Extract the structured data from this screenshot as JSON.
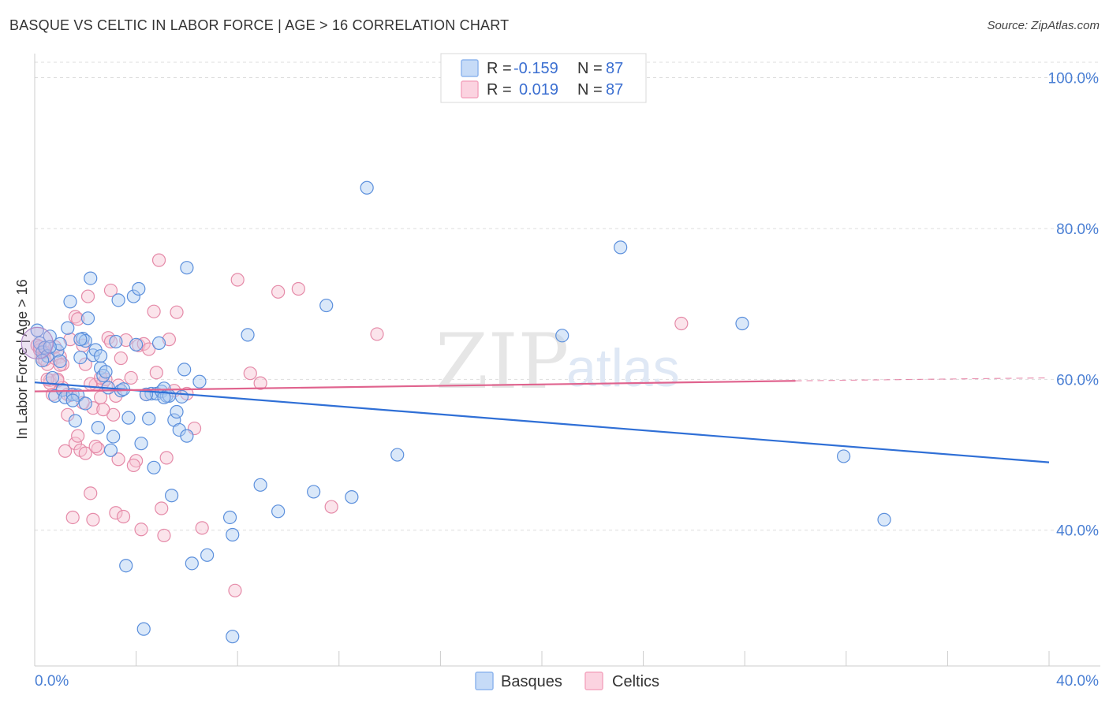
{
  "title": "BASQUE VS CELTIC IN LABOR FORCE | AGE > 16 CORRELATION CHART",
  "source": "Source: ZipAtlas.com",
  "watermark": {
    "zip": "ZIP",
    "atlas": "atlas"
  },
  "legend_top": [
    {
      "r_label": "R = ",
      "r_value": "-0.159",
      "n_label": "N = ",
      "n_value": "87",
      "color": "#8fb6ee"
    },
    {
      "r_label": "R = ",
      "r_value": "0.019",
      "n_label": "N = ",
      "n_value": "87",
      "color": "#f4a7c0"
    }
  ],
  "legend_bottom": [
    "Basques",
    "Celtics"
  ],
  "colors": {
    "blue_fill": "#aecbf2",
    "blue_stroke": "#5b8fdc",
    "blue_line": "#2f6fd6",
    "pink_fill": "#f7c3d3",
    "pink_stroke": "#e58aa8",
    "pink_line": "#e0638e",
    "grid": "#dddddd",
    "tick_text": "#4a7fd4"
  },
  "chart_data": {
    "type": "scatter",
    "title": "BASQUE VS CELTIC IN LABOR FORCE | AGE > 16 CORRELATION CHART",
    "xlabel": "",
    "ylabel": "In Labor Force | Age > 16",
    "xlim": [
      0,
      40
    ],
    "ylim": [
      22,
      102
    ],
    "x_tick_labels": [
      {
        "value": 0,
        "label": "0.0%"
      },
      {
        "value": 40,
        "label": "40.0%"
      }
    ],
    "x_minor_ticks": [
      0,
      4,
      8,
      12,
      16,
      20,
      24,
      28,
      32,
      36,
      40
    ],
    "y_ticks": [
      {
        "value": 40,
        "label": "40.0%"
      },
      {
        "value": 60,
        "label": "60.0%"
      },
      {
        "value": 80,
        "label": "80.0%"
      },
      {
        "value": 100,
        "label": "100.0%"
      }
    ],
    "series": [
      {
        "name": "Basques",
        "r": -0.159,
        "n": 87,
        "trend": {
          "x": [
            0,
            40
          ],
          "y": [
            59.6,
            49.0
          ]
        },
        "points": [
          [
            0.1,
            66.5
          ],
          [
            0.2,
            64.8
          ],
          [
            0.3,
            63.6
          ],
          [
            0.4,
            64.2
          ],
          [
            0.5,
            63.1
          ],
          [
            0.6,
            65.7
          ],
          [
            0.7,
            60.2
          ],
          [
            0.8,
            57.8
          ],
          [
            0.9,
            63.8
          ],
          [
            1.0,
            62.4
          ],
          [
            1.1,
            58.6
          ],
          [
            1.2,
            57.6
          ],
          [
            1.3,
            66.8
          ],
          [
            1.4,
            70.3
          ],
          [
            1.5,
            58.0
          ],
          [
            1.6,
            54.5
          ],
          [
            1.7,
            57.9
          ],
          [
            1.8,
            62.9
          ],
          [
            1.9,
            65.4
          ],
          [
            2.0,
            65.1
          ],
          [
            2.1,
            68.1
          ],
          [
            2.2,
            73.4
          ],
          [
            2.3,
            63.2
          ],
          [
            2.4,
            63.9
          ],
          [
            2.5,
            53.6
          ],
          [
            2.6,
            61.5
          ],
          [
            2.7,
            60.5
          ],
          [
            2.8,
            61.0
          ],
          [
            2.9,
            58.9
          ],
          [
            3.0,
            50.6
          ],
          [
            3.1,
            52.4
          ],
          [
            3.2,
            65.0
          ],
          [
            3.3,
            70.5
          ],
          [
            3.4,
            58.5
          ],
          [
            3.6,
            35.3
          ],
          [
            3.7,
            54.9
          ],
          [
            3.9,
            71.0
          ],
          [
            4.0,
            64.6
          ],
          [
            4.1,
            72.0
          ],
          [
            4.2,
            51.5
          ],
          [
            4.3,
            26.9
          ],
          [
            4.5,
            54.8
          ],
          [
            4.6,
            58.1
          ],
          [
            4.7,
            48.3
          ],
          [
            4.8,
            58.1
          ],
          [
            4.9,
            64.8
          ],
          [
            5.0,
            58.4
          ],
          [
            5.1,
            58.8
          ],
          [
            5.2,
            57.8
          ],
          [
            5.3,
            57.8
          ],
          [
            5.4,
            44.6
          ],
          [
            5.5,
            54.6
          ],
          [
            5.6,
            55.7
          ],
          [
            5.7,
            53.3
          ],
          [
            5.8,
            57.7
          ],
          [
            5.9,
            61.3
          ],
          [
            6.0,
            52.5
          ],
          [
            6.0,
            74.8
          ],
          [
            6.2,
            35.6
          ],
          [
            6.5,
            59.7
          ],
          [
            6.8,
            36.7
          ],
          [
            7.7,
            41.7
          ],
          [
            7.8,
            39.4
          ],
          [
            7.8,
            25.9
          ],
          [
            8.4,
            65.9
          ],
          [
            8.9,
            46.0
          ],
          [
            9.6,
            42.5
          ],
          [
            11.0,
            45.1
          ],
          [
            11.5,
            69.8
          ],
          [
            12.5,
            44.4
          ],
          [
            13.1,
            85.4
          ],
          [
            14.3,
            50.0
          ],
          [
            20.8,
            65.8
          ],
          [
            23.1,
            77.5
          ],
          [
            27.9,
            67.4
          ],
          [
            31.9,
            49.8
          ],
          [
            33.5,
            41.4
          ],
          [
            0.3,
            62.5
          ],
          [
            1.0,
            64.7
          ],
          [
            1.5,
            57.2
          ],
          [
            2.0,
            56.8
          ],
          [
            2.6,
            63.1
          ],
          [
            3.5,
            58.7
          ],
          [
            4.4,
            58.0
          ],
          [
            5.1,
            57.6
          ],
          [
            0.6,
            64.3
          ],
          [
            1.8,
            65.3
          ]
        ]
      },
      {
        "name": "Celtics",
        "r": 0.019,
        "n": 87,
        "trend": {
          "x": [
            0,
            30
          ],
          "y": [
            58.4,
            59.8
          ]
        },
        "trend_dashed": {
          "x": [
            30,
            40
          ],
          "y": [
            59.8,
            60.2
          ]
        },
        "points": [
          [
            0.1,
            64.5
          ],
          [
            0.2,
            63.9
          ],
          [
            0.3,
            62.8
          ],
          [
            0.4,
            63.6
          ],
          [
            0.5,
            62.0
          ],
          [
            0.6,
            59.9
          ],
          [
            0.7,
            58.0
          ],
          [
            0.8,
            62.8
          ],
          [
            0.9,
            59.8
          ],
          [
            1.0,
            63.0
          ],
          [
            1.1,
            62.0
          ],
          [
            1.2,
            50.5
          ],
          [
            1.3,
            55.3
          ],
          [
            1.4,
            57.9
          ],
          [
            1.5,
            41.7
          ],
          [
            1.6,
            51.5
          ],
          [
            1.7,
            52.5
          ],
          [
            1.8,
            50.6
          ],
          [
            1.9,
            64.5
          ],
          [
            2.0,
            62.0
          ],
          [
            2.1,
            71.0
          ],
          [
            2.2,
            44.9
          ],
          [
            2.3,
            56.2
          ],
          [
            2.4,
            59.3
          ],
          [
            2.5,
            50.8
          ],
          [
            2.6,
            57.6
          ],
          [
            2.7,
            59.6
          ],
          [
            2.8,
            60.0
          ],
          [
            2.9,
            65.5
          ],
          [
            3.0,
            71.8
          ],
          [
            3.1,
            55.3
          ],
          [
            3.2,
            42.3
          ],
          [
            3.3,
            59.2
          ],
          [
            3.4,
            62.8
          ],
          [
            3.5,
            41.8
          ],
          [
            3.6,
            65.2
          ],
          [
            3.8,
            60.2
          ],
          [
            4.0,
            49.2
          ],
          [
            4.1,
            64.5
          ],
          [
            4.2,
            40.1
          ],
          [
            4.3,
            64.7
          ],
          [
            4.5,
            64.0
          ],
          [
            4.7,
            69.0
          ],
          [
            4.8,
            60.9
          ],
          [
            4.9,
            75.8
          ],
          [
            5.0,
            42.9
          ],
          [
            5.1,
            39.3
          ],
          [
            5.2,
            49.6
          ],
          [
            5.3,
            65.3
          ],
          [
            5.5,
            58.5
          ],
          [
            5.6,
            68.9
          ],
          [
            6.0,
            58.1
          ],
          [
            6.3,
            53.5
          ],
          [
            6.6,
            40.3
          ],
          [
            7.9,
            32.0
          ],
          [
            8.0,
            73.2
          ],
          [
            8.5,
            60.8
          ],
          [
            8.9,
            59.5
          ],
          [
            9.6,
            71.6
          ],
          [
            10.4,
            72.0
          ],
          [
            11.7,
            43.1
          ],
          [
            13.5,
            66.0
          ],
          [
            25.5,
            67.4
          ],
          [
            0.2,
            64.3
          ],
          [
            0.4,
            62.6
          ],
          [
            0.6,
            59.5
          ],
          [
            0.8,
            64.3
          ],
          [
            1.0,
            61.9
          ],
          [
            1.4,
            65.3
          ],
          [
            1.6,
            68.3
          ],
          [
            2.0,
            50.2
          ],
          [
            2.2,
            59.4
          ],
          [
            2.4,
            51.1
          ],
          [
            2.6,
            60.2
          ],
          [
            3.0,
            65.0
          ],
          [
            3.2,
            57.8
          ],
          [
            1.1,
            58.9
          ],
          [
            1.3,
            58.0
          ],
          [
            1.7,
            68.0
          ],
          [
            2.3,
            41.4
          ],
          [
            3.9,
            48.6
          ],
          [
            0.9,
            60.0
          ],
          [
            1.9,
            56.9
          ],
          [
            2.7,
            56.0
          ],
          [
            3.3,
            49.4
          ],
          [
            4.4,
            58.0
          ],
          [
            0.5,
            60.0
          ]
        ]
      }
    ]
  }
}
